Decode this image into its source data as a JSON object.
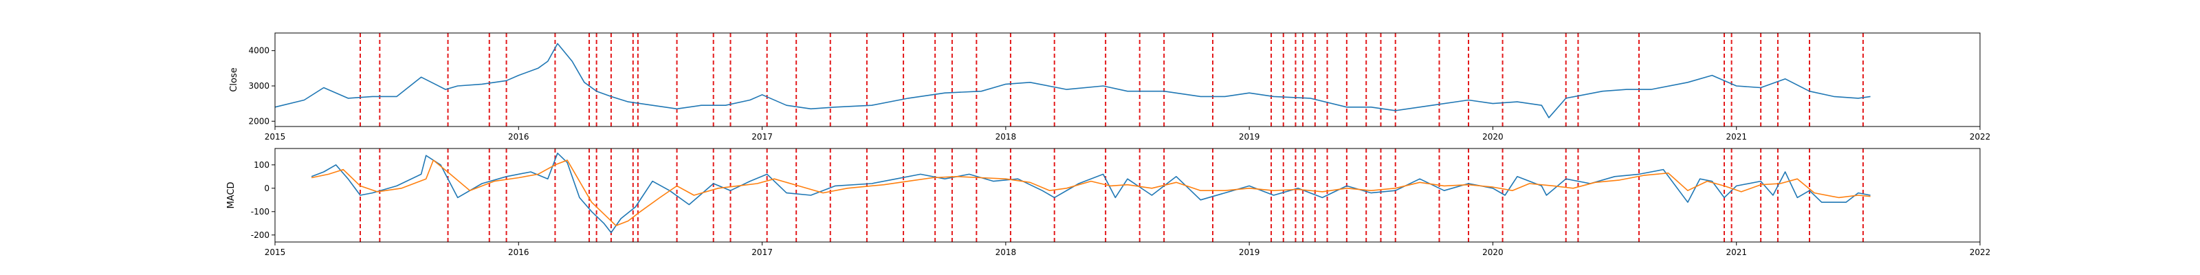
{
  "chart_data": [
    {
      "type": "line",
      "ylabel": "Close",
      "xlabel": "",
      "title": "",
      "xlim": [
        2015.0,
        2022.0
      ],
      "ylim": [
        1850,
        4500
      ],
      "xticks": [
        "2015",
        "2016",
        "2017",
        "2018",
        "2019",
        "2020",
        "2021",
        "2022"
      ],
      "yticks": [
        2000,
        3000,
        4000
      ],
      "grid": false,
      "series": [
        {
          "color": "#1f77b4",
          "x": [
            2015.0,
            2015.12,
            2015.2,
            2015.3,
            2015.4,
            2015.5,
            2015.6,
            2015.7,
            2015.75,
            2015.85,
            2015.95,
            2016.0,
            2016.08,
            2016.12,
            2016.16,
            2016.22,
            2016.27,
            2016.32,
            2016.38,
            2016.45,
            2016.55,
            2016.65,
            2016.75,
            2016.85,
            2016.95,
            2017.0,
            2017.1,
            2017.2,
            2017.3,
            2017.45,
            2017.6,
            2017.75,
            2017.9,
            2018.0,
            2018.1,
            2018.25,
            2018.4,
            2018.5,
            2018.65,
            2018.8,
            2018.9,
            2019.0,
            2019.1,
            2019.25,
            2019.4,
            2019.5,
            2019.6,
            2019.75,
            2019.9,
            2020.0,
            2020.1,
            2020.2,
            2020.23,
            2020.3,
            2020.45,
            2020.55,
            2020.65,
            2020.8,
            2020.9,
            2021.0,
            2021.1,
            2021.2,
            2021.3,
            2021.4,
            2021.5,
            2021.55
          ],
          "y": [
            2400,
            2600,
            2950,
            2650,
            2700,
            2700,
            3250,
            2900,
            3000,
            3050,
            3150,
            3300,
            3500,
            3700,
            4200,
            3700,
            3100,
            2850,
            2700,
            2550,
            2450,
            2350,
            2450,
            2450,
            2600,
            2750,
            2450,
            2350,
            2400,
            2450,
            2650,
            2800,
            2850,
            3050,
            3100,
            2900,
            3000,
            2850,
            2850,
            2700,
            2700,
            2800,
            2700,
            2650,
            2400,
            2400,
            2300,
            2450,
            2600,
            2500,
            2550,
            2450,
            2100,
            2650,
            2850,
            2900,
            2900,
            3100,
            3300,
            3000,
            2950,
            3200,
            2850,
            2700,
            2650,
            2700
          ]
        }
      ],
      "vlines_x": [
        2015.35,
        2015.43,
        2015.71,
        2015.88,
        2015.95,
        2016.15,
        2016.29,
        2016.32,
        2016.38,
        2016.47,
        2016.49,
        2016.65,
        2016.8,
        2016.87,
        2017.02,
        2017.14,
        2017.28,
        2017.43,
        2017.58,
        2017.71,
        2017.78,
        2017.88,
        2018.02,
        2018.2,
        2018.41,
        2018.55,
        2018.65,
        2018.85,
        2019.09,
        2019.14,
        2019.19,
        2019.22,
        2019.27,
        2019.32,
        2019.4,
        2019.48,
        2019.54,
        2019.6,
        2019.78,
        2019.9,
        2020.04,
        2020.3,
        2020.35,
        2020.6,
        2020.95,
        2020.98,
        2021.1,
        2021.17,
        2021.3,
        2021.52
      ],
      "vline_color": "#e31a1c"
    },
    {
      "type": "line",
      "ylabel": "MACD",
      "xlabel": "",
      "title": "",
      "xlim": [
        2015.0,
        2022.0
      ],
      "ylim": [
        -230,
        170
      ],
      "xticks": [
        "2015",
        "2016",
        "2017",
        "2018",
        "2019",
        "2020",
        "2021",
        "2022"
      ],
      "yticks": [
        -200,
        -100,
        0,
        100
      ],
      "grid": false,
      "series": [
        {
          "color": "#1f77b4",
          "x": [
            2015.15,
            2015.2,
            2015.25,
            2015.3,
            2015.35,
            2015.4,
            2015.5,
            2015.6,
            2015.62,
            2015.68,
            2015.75,
            2015.85,
            2015.95,
            2016.05,
            2016.12,
            2016.16,
            2016.2,
            2016.25,
            2016.3,
            2016.35,
            2016.38,
            2016.42,
            2016.48,
            2016.55,
            2016.62,
            2016.7,
            2016.8,
            2016.87,
            2016.95,
            2017.02,
            2017.1,
            2017.2,
            2017.3,
            2017.45,
            2017.55,
            2017.65,
            2017.75,
            2017.85,
            2017.95,
            2018.05,
            2018.15,
            2018.2,
            2018.3,
            2018.4,
            2018.45,
            2018.5,
            2018.6,
            2018.7,
            2018.8,
            2018.9,
            2019.0,
            2019.1,
            2019.2,
            2019.3,
            2019.4,
            2019.5,
            2019.6,
            2019.7,
            2019.8,
            2019.9,
            2020.0,
            2020.05,
            2020.1,
            2020.2,
            2020.22,
            2020.3,
            2020.4,
            2020.5,
            2020.6,
            2020.7,
            2020.8,
            2020.85,
            2020.9,
            2020.95,
            2021.0,
            2021.1,
            2021.15,
            2021.2,
            2021.25,
            2021.3,
            2021.35,
            2021.45,
            2021.5,
            2021.55
          ],
          "y": [
            50,
            70,
            100,
            40,
            -30,
            -20,
            10,
            60,
            140,
            100,
            -40,
            20,
            50,
            70,
            40,
            150,
            110,
            -40,
            -100,
            -150,
            -190,
            -130,
            -80,
            30,
            -10,
            -70,
            20,
            -10,
            30,
            60,
            -20,
            -30,
            10,
            20,
            40,
            60,
            40,
            60,
            30,
            40,
            -10,
            -40,
            20,
            60,
            -40,
            40,
            -30,
            50,
            -50,
            -20,
            10,
            -30,
            0,
            -40,
            10,
            -20,
            -10,
            40,
            -10,
            20,
            0,
            -30,
            50,
            10,
            -30,
            40,
            20,
            50,
            60,
            80,
            -60,
            40,
            30,
            -40,
            10,
            30,
            -30,
            70,
            -40,
            -10,
            -60,
            -60,
            -20,
            -30
          ]
        },
        {
          "color": "#ff7f0e",
          "x": [
            2015.15,
            2015.22,
            2015.28,
            2015.35,
            2015.42,
            2015.52,
            2015.62,
            2015.65,
            2015.72,
            2015.8,
            2015.9,
            2016.0,
            2016.08,
            2016.15,
            2016.2,
            2016.25,
            2016.3,
            2016.35,
            2016.4,
            2016.45,
            2016.5,
            2016.58,
            2016.65,
            2016.72,
            2016.82,
            2016.9,
            2016.98,
            2017.05,
            2017.15,
            2017.25,
            2017.35,
            2017.5,
            2017.6,
            2017.7,
            2017.8,
            2017.9,
            2018.0,
            2018.1,
            2018.18,
            2018.25,
            2018.35,
            2018.43,
            2018.5,
            2018.6,
            2018.7,
            2018.8,
            2018.9,
            2019.0,
            2019.1,
            2019.2,
            2019.3,
            2019.4,
            2019.5,
            2019.6,
            2019.7,
            2019.8,
            2019.9,
            2020.0,
            2020.08,
            2020.15,
            2020.25,
            2020.33,
            2020.42,
            2020.52,
            2020.62,
            2020.72,
            2020.8,
            2020.88,
            2020.95,
            2021.02,
            2021.1,
            2021.18,
            2021.25,
            2021.32,
            2021.42,
            2021.5,
            2021.55
          ],
          "y": [
            45,
            60,
            80,
            10,
            -15,
            0,
            40,
            120,
            60,
            -10,
            30,
            45,
            60,
            100,
            120,
            30,
            -60,
            -110,
            -160,
            -140,
            -100,
            -40,
            10,
            -30,
            0,
            10,
            20,
            40,
            10,
            -20,
            0,
            15,
            30,
            45,
            50,
            45,
            40,
            25,
            -10,
            0,
            30,
            10,
            15,
            0,
            25,
            -10,
            -10,
            0,
            -10,
            -5,
            -15,
            0,
            -10,
            0,
            25,
            10,
            15,
            5,
            -10,
            20,
            10,
            0,
            25,
            35,
            55,
            65,
            -10,
            30,
            10,
            -15,
            15,
            20,
            40,
            -20,
            -40,
            -30,
            -35
          ]
        }
      ],
      "vlines_x": [
        2015.35,
        2015.43,
        2015.71,
        2015.88,
        2015.95,
        2016.15,
        2016.29,
        2016.32,
        2016.38,
        2016.47,
        2016.49,
        2016.65,
        2016.8,
        2016.87,
        2017.02,
        2017.14,
        2017.28,
        2017.43,
        2017.58,
        2017.71,
        2017.78,
        2017.88,
        2018.02,
        2018.2,
        2018.41,
        2018.55,
        2018.65,
        2018.85,
        2019.09,
        2019.14,
        2019.19,
        2019.22,
        2019.27,
        2019.32,
        2019.4,
        2019.48,
        2019.54,
        2019.6,
        2019.78,
        2019.9,
        2020.04,
        2020.3,
        2020.35,
        2020.6,
        2020.95,
        2020.98,
        2021.1,
        2021.17,
        2021.3,
        2021.52
      ],
      "vline_color": "#e31a1c"
    }
  ]
}
